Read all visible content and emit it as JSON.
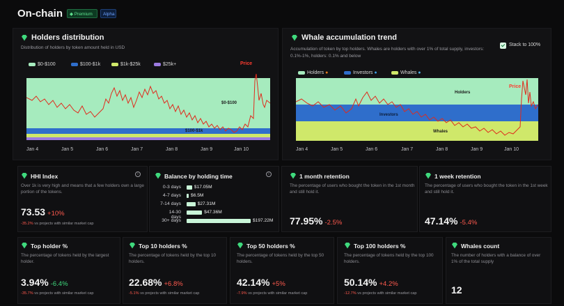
{
  "header": {
    "title": "On-chain",
    "badge_premium": "Premium",
    "badge_alpha": "Alpha"
  },
  "colors": {
    "green_band": "#a6ebbe",
    "blue_band": "#2f6ecb",
    "yellow_band": "#cfe86a",
    "purple_band": "#9b7ae0",
    "price_line": "#e02a1c",
    "up": "#3fd97d",
    "down": "#ff5a4e"
  },
  "holders": {
    "title": "Holders distribution",
    "subtitle": "Distribution of holders by token amount held in USD",
    "legend": [
      "$0-$100",
      "$100-$1k",
      "$1k-$25k",
      "$25k+"
    ],
    "price_label": "Price",
    "band_label_0_100": "$0-$100",
    "band_label_100_1k": "$100-$1k",
    "x_labels": [
      "Jan 4",
      "Jan 5",
      "Jan 6",
      "Jan 7",
      "Jan 8",
      "Jan 9",
      "Jan 10"
    ]
  },
  "whale": {
    "title": "Whale accumulation trend",
    "subtitle": "Accumulation of token by top holders. Whales are holders with over 1% of total supply, investors: 0.1%-1%, holders: 0.1% and below",
    "stack_label": "Stack to 100%",
    "legend": [
      "Holders",
      "Investors",
      "Whales"
    ],
    "price_label": "Price",
    "band_holders": "Holders",
    "band_investors": "Investors",
    "band_whales": "Whales",
    "x_labels": [
      "Jan 4",
      "Jan 5",
      "Jan 6",
      "Jan 7",
      "Jan 8",
      "Jan 9",
      "Jan 10"
    ]
  },
  "hhi": {
    "title": "HHI Index",
    "desc": "Over 1k is very high and means that a few holders own a large portion of the tokens.",
    "value": "73.53",
    "change": "+10%",
    "footer_pct": "-35.2%",
    "footer_text": "vs projects with similar market cap"
  },
  "balance": {
    "title": "Balance by holding time",
    "rows": [
      {
        "label": "0-3 days",
        "value": "$17.05M",
        "share": 0.086
      },
      {
        "label": "4-7 days",
        "value": "$6.5M",
        "share": 0.033
      },
      {
        "label": "7-14 days",
        "value": "$27.31M",
        "share": 0.138
      },
      {
        "label": "14-30 days",
        "value": "$47.36M",
        "share": 0.24
      },
      {
        "label": "30+ days",
        "value": "$197.22M",
        "share": 1.0
      }
    ]
  },
  "month_retention": {
    "title": "1 month retention",
    "desc": "The percentage of users who bought the token in the 1st month and still hold it.",
    "value": "77.95%",
    "change": "-2.5%"
  },
  "week_retention": {
    "title": "1 week retention",
    "desc": "The percentage of users who bought the token in the 1st week and still hold it.",
    "value": "47.14%",
    "change": "-5.4%"
  },
  "top_holder": {
    "title": "Top holder %",
    "desc": "The percentage of tokens held by the largest holder.",
    "value": "3.94%",
    "change": "-6.4%",
    "footer_pct": "-35.7%",
    "footer_text": "vs projects with similar market cap"
  },
  "top10": {
    "title": "Top 10 holders %",
    "desc": "The percentage of tokens held by the top 10 holders.",
    "value": "22.68%",
    "change": "+6.8%",
    "footer_pct": "-5.1%",
    "footer_text": "vs projects with similar market cap"
  },
  "top50": {
    "title": "Top 50 holders %",
    "desc": "The percentage of tokens held by the top 50 holders.",
    "value": "42.14%",
    "change": "+5%",
    "footer_pct": "-7.9%",
    "footer_text": "vs projects with similar market cap"
  },
  "top100": {
    "title": "Top 100 holders %",
    "desc": "The percentage of tokens held by the top 100 holders.",
    "value": "50.14%",
    "change": "+4.2%",
    "footer_pct": "-12.7%",
    "footer_text": "vs projects with similar market cap"
  },
  "whales_count": {
    "title": "Whales count",
    "desc": "The number of holders with a balance of over 1% of the total supply",
    "value": "12"
  }
}
